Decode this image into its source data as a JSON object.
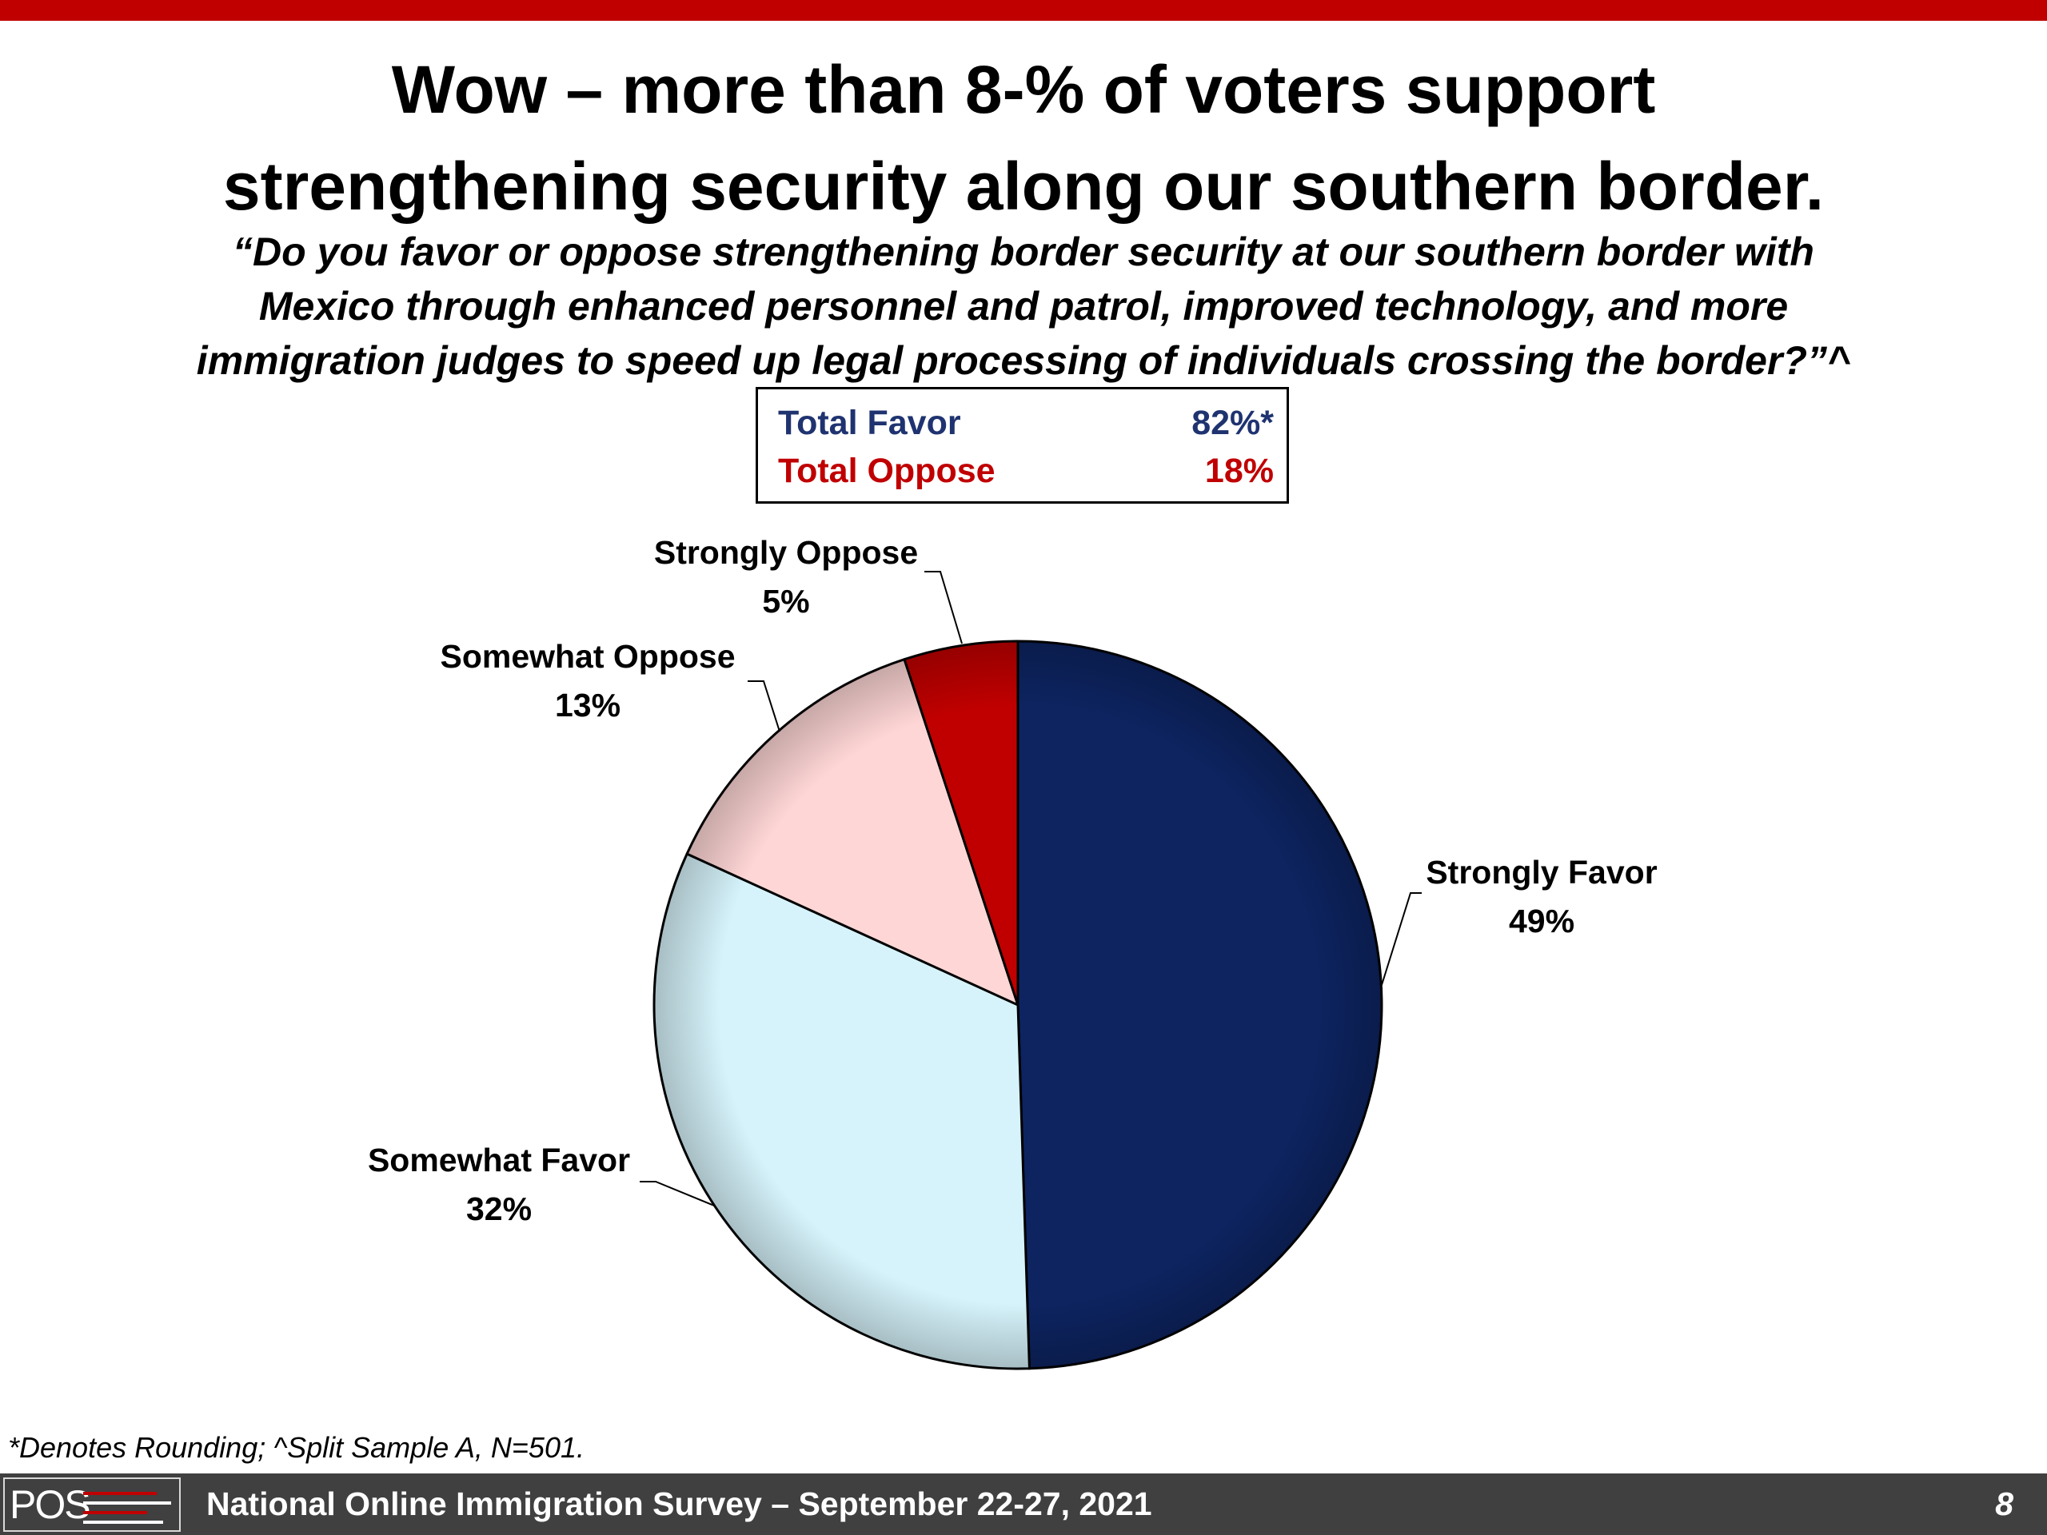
{
  "slide": {
    "title_line1": "Wow – more than 8-% of voters support",
    "title_line2": "strengthening security along our southern border.",
    "question_line1": "“Do you favor or oppose strengthening border security at our southern border with",
    "question_line2": "Mexico through enhanced personnel and patrol, improved technology, and more",
    "question_line3": "immigration judges to speed up legal processing of individuals crossing the border?”^",
    "footnote": "*Denotes Rounding; ^Split Sample A, N=501.",
    "footer_text": "National Online Immigration Survey – September 22-27, 2021",
    "page_number": "8",
    "logo_text": "POS"
  },
  "totals": {
    "favor_label": "Total Favor",
    "favor_value": "82%*",
    "oppose_label": "Total Oppose",
    "oppose_value": "18%",
    "favor_color": "#1f3370",
    "oppose_color": "#c00000"
  },
  "chart_data": {
    "type": "pie",
    "slices": [
      {
        "label": "Strongly Favor",
        "value": 49,
        "value_label": "49%",
        "color": "#0d2461"
      },
      {
        "label": "Somewhat Favor",
        "value": 32,
        "value_label": "32%",
        "color": "#d6f3fb"
      },
      {
        "label": "Somewhat Oppose",
        "value": 13,
        "value_label": "13%",
        "color": "#ffd6d6"
      },
      {
        "label": "Strongly Oppose",
        "value": 5,
        "value_label": "5%",
        "color": "#c00000"
      }
    ]
  }
}
